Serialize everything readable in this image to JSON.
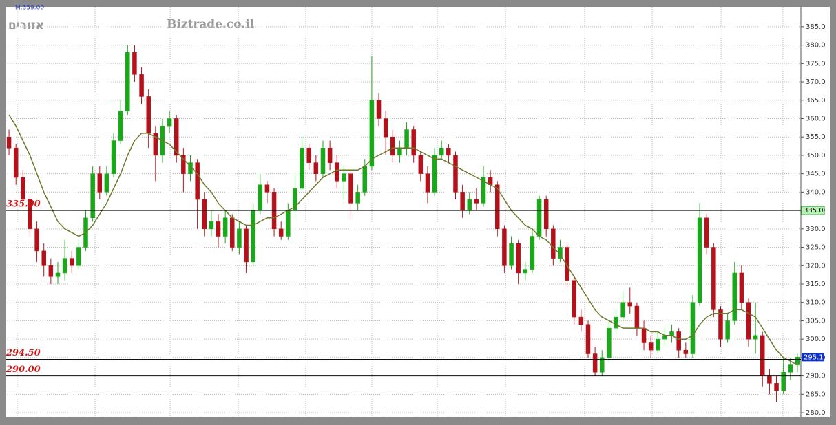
{
  "chart_data": {
    "type": "candlestick",
    "header_note": "M.359.00",
    "watermark": "Biztrade.co.il",
    "hebrew_label": "אזורים",
    "up_color": "#1aa81a",
    "down_color": "#b3121b",
    "ma_color": "#6b7a2a",
    "open": [
      355,
      352,
      344,
      338,
      330,
      324,
      320,
      317,
      318,
      322,
      320,
      325,
      333,
      345,
      340,
      345,
      354,
      362,
      378,
      372,
      366,
      356,
      350,
      358,
      360,
      350,
      345,
      348,
      338,
      330,
      332,
      328,
      333,
      325,
      330,
      321,
      335,
      342,
      340,
      330,
      328,
      335,
      341,
      352,
      348,
      345,
      352,
      348,
      343,
      345,
      337,
      340,
      347,
      365,
      360,
      355,
      350,
      352,
      357,
      350,
      345,
      340,
      350,
      352,
      350,
      340,
      335,
      338,
      337,
      344,
      342,
      330,
      320,
      326,
      318,
      319,
      328,
      338,
      330,
      322,
      325,
      316,
      306,
      304,
      296,
      291,
      295,
      303,
      306,
      310,
      309,
      303,
      299,
      297,
      300,
      301,
      302,
      297,
      296,
      310,
      333,
      325,
      308,
      300,
      305,
      318,
      310,
      300,
      301,
      290,
      288,
      286,
      291,
      293
    ],
    "high": [
      357,
      353,
      346,
      339,
      332,
      326,
      322,
      321,
      327,
      324,
      327,
      335,
      347,
      347,
      347,
      356,
      365,
      380,
      380,
      374,
      368,
      358,
      360,
      362,
      361,
      352,
      350,
      349,
      340,
      335,
      334,
      335,
      334,
      332,
      331,
      337,
      345,
      343,
      341,
      332,
      337,
      345,
      355,
      353,
      350,
      354,
      354,
      350,
      347,
      346,
      342,
      349,
      377,
      367,
      362,
      357,
      354,
      359,
      358,
      351,
      347,
      352,
      354,
      353,
      351,
      342,
      340,
      341,
      347,
      346,
      343,
      331,
      328,
      327,
      321,
      330,
      339,
      339,
      331,
      327,
      326,
      317,
      308,
      305,
      298,
      297,
      305,
      308,
      313,
      314,
      310,
      305,
      301,
      302,
      303,
      304,
      303,
      299,
      312,
      337,
      334,
      326,
      309,
      307,
      321,
      320,
      311,
      310,
      302,
      292,
      290,
      295,
      295,
      296
    ],
    "low": [
      350,
      342,
      336,
      328,
      321,
      317,
      315,
      315,
      316,
      318,
      319,
      324,
      332,
      338,
      339,
      344,
      353,
      361,
      370,
      364,
      352,
      343,
      348,
      356,
      348,
      340,
      343,
      330,
      328,
      328,
      325,
      326,
      324,
      323,
      318,
      320,
      334,
      337,
      328,
      327,
      327,
      333,
      340,
      346,
      343,
      344,
      346,
      341,
      338,
      333,
      335,
      339,
      346,
      358,
      350,
      348,
      348,
      350,
      348,
      343,
      337,
      339,
      349,
      348,
      338,
      333,
      334,
      335,
      336,
      340,
      328,
      318,
      319,
      315,
      316,
      318,
      327,
      328,
      320,
      321,
      314,
      304,
      302,
      295,
      290,
      290,
      294,
      301,
      305,
      307,
      301,
      297,
      295,
      296,
      298,
      299,
      295,
      295,
      295,
      309,
      323,
      306,
      298,
      299,
      304,
      308,
      298,
      296,
      287,
      285,
      283,
      285,
      289,
      291
    ],
    "close": [
      352,
      344,
      338,
      330,
      324,
      320,
      317,
      318,
      322,
      320,
      325,
      333,
      345,
      340,
      345,
      354,
      362,
      378,
      372,
      366,
      356,
      350,
      358,
      360,
      350,
      345,
      348,
      338,
      330,
      332,
      328,
      333,
      325,
      330,
      321,
      335,
      342,
      340,
      330,
      328,
      335,
      341,
      352,
      348,
      345,
      352,
      348,
      343,
      345,
      337,
      340,
      347,
      365,
      360,
      355,
      350,
      352,
      357,
      350,
      345,
      340,
      350,
      352,
      350,
      340,
      335,
      338,
      337,
      344,
      342,
      330,
      320,
      326,
      318,
      319,
      328,
      338,
      330,
      322,
      325,
      316,
      306,
      304,
      296,
      291,
      295,
      303,
      306,
      310,
      309,
      303,
      299,
      297,
      300,
      301,
      302,
      297,
      296,
      310,
      333,
      325,
      308,
      300,
      305,
      318,
      310,
      300,
      301,
      290,
      288,
      286,
      291,
      293,
      295.1
    ],
    "ma": [
      361,
      358,
      354,
      350,
      345,
      340,
      336,
      332,
      330,
      329,
      328,
      329,
      331,
      334,
      337,
      341,
      345,
      350,
      354,
      356,
      356,
      355,
      354,
      353,
      351,
      349,
      347,
      345,
      342,
      340,
      337,
      335,
      333,
      332,
      331,
      331,
      332,
      333,
      333,
      334,
      335,
      336,
      338,
      340,
      342,
      344,
      345,
      346,
      346,
      346,
      346,
      347,
      349,
      350,
      351,
      352,
      352,
      352,
      352,
      351,
      350,
      349,
      349,
      348,
      347,
      346,
      345,
      344,
      343,
      342,
      341,
      338,
      335,
      333,
      331,
      330,
      328,
      327,
      325,
      323,
      320,
      317,
      314,
      311,
      308,
      306,
      305,
      304,
      303,
      303,
      303,
      303,
      302,
      302,
      301,
      301,
      300,
      300,
      301,
      304,
      306,
      307,
      307,
      307,
      308,
      308,
      307,
      306,
      303,
      300,
      297,
      295,
      294,
      293
    ],
    "levels": [
      {
        "value": 335,
        "label": "335.00",
        "axis_label": "335.0"
      },
      {
        "value": 294.5,
        "label": "294.50"
      },
      {
        "value": 290,
        "label": "290.00"
      }
    ],
    "ylim": [
      278.7,
      390.4
    ],
    "yticks": [
      {
        "value": 280,
        "label": "280.0"
      },
      {
        "value": 285,
        "label": "285.0"
      },
      {
        "value": 290,
        "label": "290.0"
      },
      {
        "value": 295,
        "label": "295.0"
      },
      {
        "value": 300,
        "label": "300.0"
      },
      {
        "value": 305,
        "label": "305.0"
      },
      {
        "value": 310,
        "label": "310.0"
      },
      {
        "value": 315,
        "label": "315.0"
      },
      {
        "value": 320,
        "label": "320.0"
      },
      {
        "value": 325,
        "label": "325.0"
      },
      {
        "value": 330,
        "label": "330.0"
      },
      {
        "value": 335,
        "label": "335.0"
      },
      {
        "value": 340,
        "label": "340.0"
      },
      {
        "value": 345,
        "label": "345.0"
      },
      {
        "value": 350,
        "label": "350.0"
      },
      {
        "value": 355,
        "label": "355.0"
      },
      {
        "value": 360,
        "label": "360.0"
      },
      {
        "value": 365,
        "label": "365.0"
      },
      {
        "value": 370,
        "label": "370.0"
      },
      {
        "value": 375,
        "label": "375.0"
      },
      {
        "value": 380,
        "label": "380.0"
      },
      {
        "value": 385,
        "label": "385.0"
      }
    ],
    "grid": true
  }
}
